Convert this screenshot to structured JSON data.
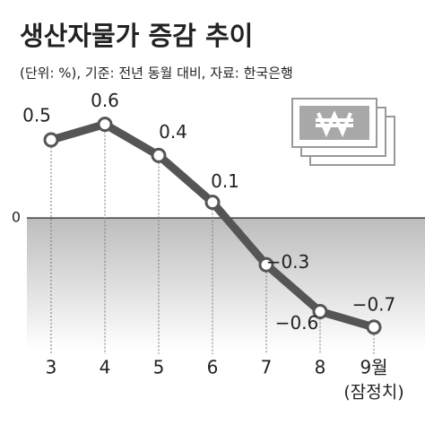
{
  "chart_data": {
    "type": "line",
    "title": "생산자물가 증감 추이",
    "subtitle": "(단위: %), 기준: 전년 동월 대비, 자료: 한국은행",
    "categories": [
      "3",
      "4",
      "5",
      "6",
      "7",
      "8",
      "9월"
    ],
    "category_note": "(잠정치)",
    "values": [
      0.5,
      0.6,
      0.4,
      0.1,
      -0.3,
      -0.6,
      -0.7
    ],
    "value_labels": [
      "0.5",
      "0.6",
      "0.4",
      "0.1",
      "−0.3",
      "−0.6",
      "−0.7"
    ],
    "color": "#555555",
    "ylim": [
      -0.85,
      0.75
    ],
    "yticks": [
      0
    ]
  }
}
